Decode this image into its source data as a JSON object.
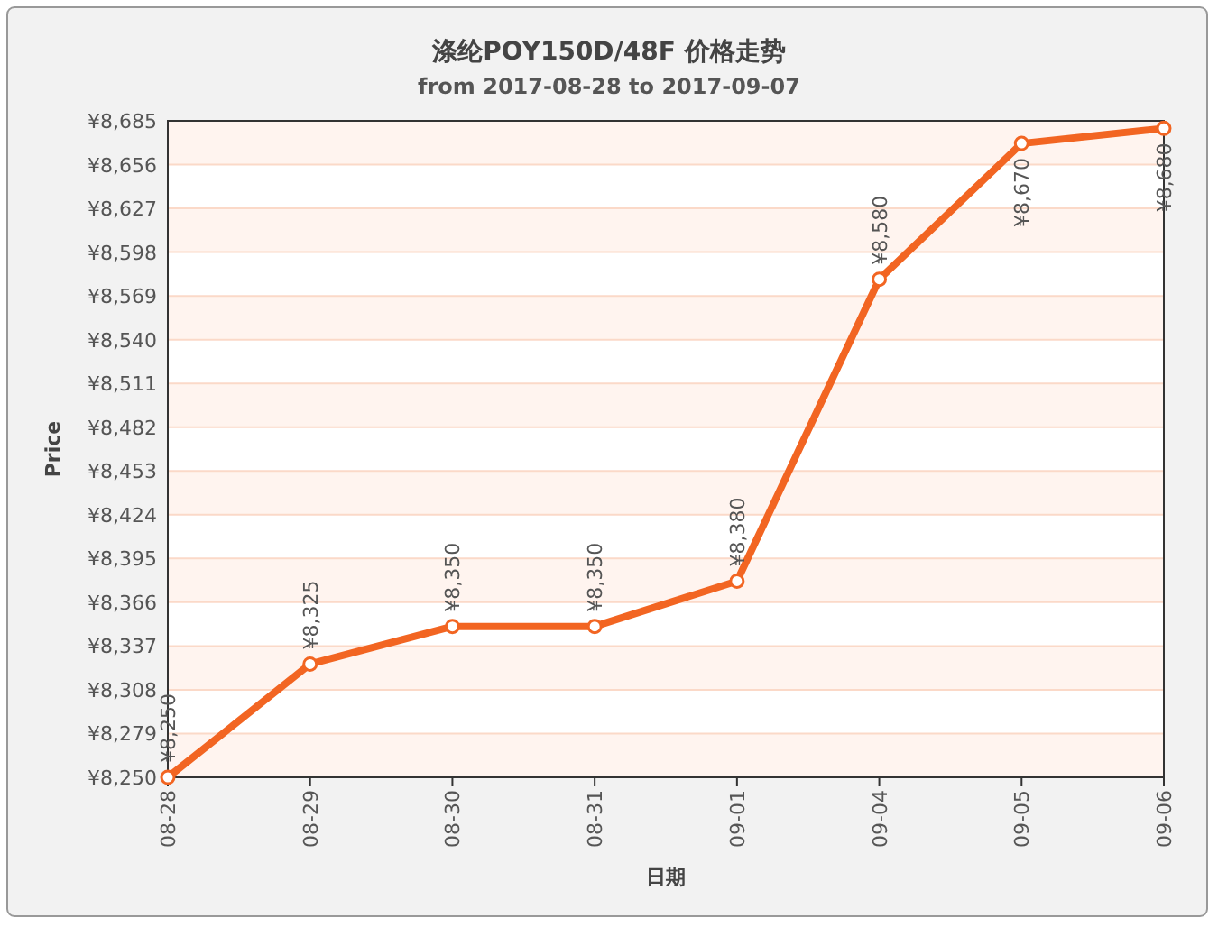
{
  "chart_data": {
    "type": "line",
    "title": "涤纶POY150D/48F 价格走势",
    "subtitle": "from 2017-08-28 to 2017-09-07",
    "xlabel": "日期",
    "ylabel": "Price",
    "categories": [
      "08-28",
      "08-29",
      "08-30",
      "08-31",
      "09-01",
      "09-04",
      "09-05",
      "09-06"
    ],
    "series": [
      {
        "color": "#f26522",
        "values": [
          8250,
          8325,
          8350,
          8350,
          8380,
          8580,
          8670,
          8680
        ],
        "value_labels": [
          "¥8,250",
          "¥8,325",
          "¥8,350",
          "¥8,350",
          "¥8,380",
          "¥8,580",
          "¥8,670",
          "¥8,680"
        ]
      }
    ],
    "ylim": [
      8250,
      8685
    ],
    "yticks": [
      {
        "value": 8250,
        "label": "¥8,250"
      },
      {
        "value": 8279,
        "label": "¥8,279"
      },
      {
        "value": 8308,
        "label": "¥8,308"
      },
      {
        "value": 8337,
        "label": "¥8,337"
      },
      {
        "value": 8366,
        "label": "¥8,366"
      },
      {
        "value": 8395,
        "label": "¥8,395"
      },
      {
        "value": 8424,
        "label": "¥8,424"
      },
      {
        "value": 8453,
        "label": "¥8,453"
      },
      {
        "value": 8482,
        "label": "¥8,482"
      },
      {
        "value": 8511,
        "label": "¥8,511"
      },
      {
        "value": 8540,
        "label": "¥8,540"
      },
      {
        "value": 8569,
        "label": "¥8,569"
      },
      {
        "value": 8598,
        "label": "¥8,598"
      },
      {
        "value": 8627,
        "label": "¥8,627"
      },
      {
        "value": 8656,
        "label": "¥8,656"
      },
      {
        "value": 8685,
        "label": "¥8,685"
      }
    ],
    "grid": "y",
    "marker": "circle",
    "line_style": "solid"
  }
}
